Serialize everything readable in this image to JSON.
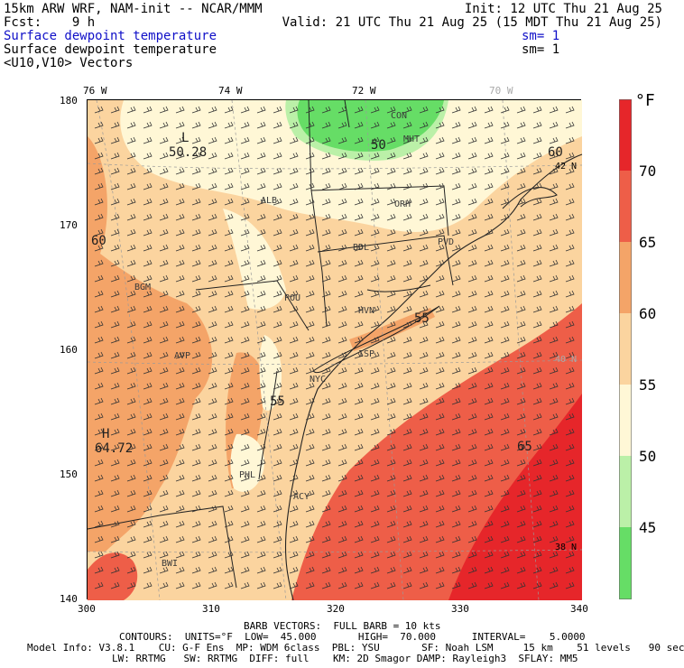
{
  "header": {
    "line1_left": "15km ARW WRF, NAM-init -- NCAR/MMM",
    "line1_right": "Init: 12 UTC Thu 21 Aug 25",
    "line2_left": "Fcst:    9 h",
    "line2_right": "Valid: 21 UTC Thu 21 Aug 25 (15 MDT Thu 21 Aug 25)",
    "line3_left": "Surface dewpoint temperature",
    "line3_right": "sm= 1",
    "line4_left": "Surface dewpoint temperature",
    "line4_right": "sm= 1",
    "line5_left": "<U10,V10> Vectors"
  },
  "map": {
    "x_ticks": [
      "300",
      "310",
      "320",
      "330",
      "340"
    ],
    "y_ticks": [
      "180",
      "170",
      "160",
      "150",
      "140"
    ],
    "lon_labels": [
      "76 W",
      "74 W",
      "72 W",
      "70 W"
    ],
    "lat_labels": [
      "42 N",
      "40 N",
      "38 N"
    ],
    "stations": [
      "CON",
      "MHT",
      "ALB",
      "ORH",
      "BDL",
      "PVD",
      "BGM",
      "POU",
      "HVN",
      "ISP",
      "AVP",
      "PHL",
      "ACY",
      "BWI",
      "NYC"
    ],
    "low_label": "L",
    "low_value": "50.28",
    "high_label": "H",
    "high_value": "64.72",
    "contour_labels": [
      "50",
      "60",
      "55",
      "55",
      "60",
      "65"
    ],
    "colors": {
      "c45": "#66dd66",
      "c50": "#bbf0a8",
      "c55": "#fff7d6",
      "c60": "#fbd49f",
      "c65": "#f4a468",
      "c70": "#ee5e48",
      "c75": "#e6262a"
    }
  },
  "colorbar": {
    "unit": "°F",
    "labels": [
      "70",
      "65",
      "60",
      "55",
      "50",
      "45"
    ]
  },
  "footer": {
    "barb": "BARB VECTORS:  FULL BARB = 10 kts",
    "contours": "CONTOURS:  UNITS=°F  LOW=  45.000       HIGH=  70.000      INTERVAL=    5.0000",
    "model1": "Model Info: V3.8.1    CU: G-F Ens  MP: WDM 6class  PBL: YSU       SF: Noah LSM     15 km    51 levels   90 sec",
    "model2": "LW: RRTMG   SW: RRTMG  DIFF: full    KM: 2D Smagor DAMP: Rayleigh3  SFLAY: MM5"
  }
}
